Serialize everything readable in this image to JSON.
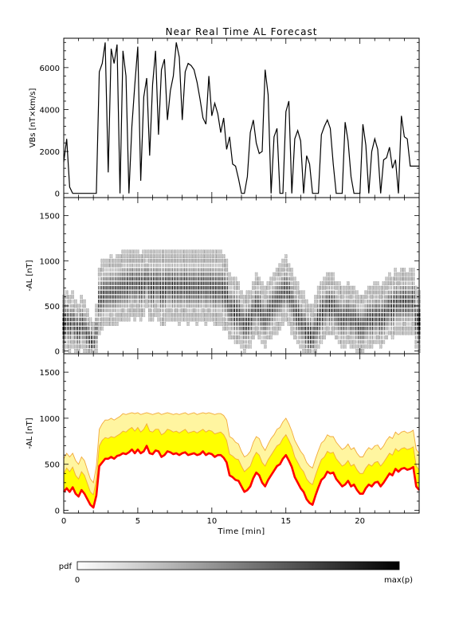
{
  "chart_data": {
    "title": "Near Real Time AL Forecast",
    "x": [
      0,
      0.2,
      0.4,
      0.6,
      0.8,
      1.0,
      1.2,
      1.4,
      1.6,
      1.8,
      2.0,
      2.2,
      2.4,
      2.6,
      2.8,
      3.0,
      3.2,
      3.4,
      3.6,
      3.8,
      4.0,
      4.2,
      4.4,
      4.6,
      4.8,
      5.0,
      5.2,
      5.4,
      5.6,
      5.8,
      6.0,
      6.2,
      6.4,
      6.6,
      6.8,
      7.0,
      7.2,
      7.4,
      7.6,
      7.8,
      8.0,
      8.2,
      8.4,
      8.6,
      8.8,
      9.0,
      9.2,
      9.4,
      9.6,
      9.8,
      10.0,
      10.2,
      10.4,
      10.6,
      10.8,
      11.0,
      11.2,
      11.4,
      11.6,
      11.8,
      12.0,
      12.2,
      12.4,
      12.6,
      12.8,
      13.0,
      13.2,
      13.4,
      13.6,
      13.8,
      14.0,
      14.2,
      14.4,
      14.6,
      14.8,
      15.0,
      15.2,
      15.4,
      15.6,
      15.8,
      16.0,
      16.2,
      16.4,
      16.6,
      16.8,
      17.0,
      17.2,
      17.4,
      17.6,
      17.8,
      18.0,
      18.2,
      18.4,
      18.6,
      18.8,
      19.0,
      19.2,
      19.4,
      19.6,
      19.8,
      20.0,
      20.2,
      20.4,
      20.6,
      20.8,
      21.0,
      21.2,
      21.4,
      21.6,
      21.8,
      22.0,
      22.2,
      22.4,
      22.6,
      22.8,
      23.0,
      23.2,
      23.4,
      23.6,
      23.8,
      24.0
    ],
    "xlim": [
      0,
      24
    ],
    "xticks": [
      "0",
      "5",
      "10",
      "15",
      "20"
    ],
    "xlabel": "Time [min]",
    "panels": [
      {
        "type": "line",
        "ylabel": "VBs [nT×km/s]",
        "ylim": [
          -200,
          7400
        ],
        "yticks": [
          "0",
          "2000",
          "4000",
          "6000"
        ],
        "series": [
          {
            "values": [
              1500,
              2600,
              300,
              0,
              0,
              0,
              0,
              0,
              0,
              0,
              0,
              0,
              5800,
              6200,
              7200,
              1000,
              6900,
              6200,
              7100,
              0,
              6800,
              5600,
              0,
              3200,
              5200,
              7000,
              600,
              4600,
              5500,
              1800,
              5200,
              6800,
              2800,
              5900,
              6400,
              3500,
              4900,
              5600,
              7200,
              6500,
              3500,
              5800,
              6200,
              6100,
              5900,
              5300,
              4500,
              3600,
              3300,
              5600,
              3700,
              4300,
              3800,
              2900,
              3600,
              2100,
              2700,
              1400,
              1300,
              700,
              0,
              0,
              800,
              2900,
              3500,
              2400,
              1900,
              2000,
              5900,
              4700,
              0,
              2700,
              3100,
              0,
              0,
              3900,
              4400,
              0,
              2600,
              3000,
              2500,
              0,
              1800,
              1400,
              0,
              0,
              0,
              2800,
              3200,
              3500,
              3100,
              1400,
              0,
              0,
              0,
              3400,
              2500,
              800,
              0,
              0,
              0,
              3300,
              2300,
              0,
              2000,
              2600,
              2100,
              0,
              1600,
              1700,
              2200,
              1200,
              1600,
              0,
              3700,
              2700,
              2600,
              1300,
              1300,
              1300,
              1300
            ]
          }
        ]
      },
      {
        "type": "heatmap",
        "ylabel": "-AL [nT]",
        "ylim": [
          -30,
          1700
        ],
        "yticks": [
          "0",
          "500",
          "1000",
          "1500"
        ],
        "bin_step": 50,
        "colorbar": {
          "label": "pdf",
          "min_label": "0",
          "max_label": "max(p)"
        }
      },
      {
        "type": "area",
        "ylabel": "-AL [nT]",
        "ylim": [
          -30,
          1700
        ],
        "yticks": [
          "0",
          "500",
          "1000",
          "1500"
        ],
        "series": [
          {
            "name": "",
            "color": "#ff0000",
            "values": [
              200,
              240,
              200,
              250,
              180,
              150,
              220,
              180,
              120,
              60,
              30,
              160,
              480,
              520,
              560,
              560,
              580,
              560,
              590,
              600,
              620,
              610,
              630,
              660,
              620,
              660,
              620,
              640,
              700,
              620,
              610,
              650,
              640,
              580,
              600,
              640,
              630,
              610,
              620,
              600,
              620,
              630,
              600,
              610,
              620,
              600,
              610,
              640,
              600,
              620,
              610,
              580,
              600,
              600,
              570,
              520,
              380,
              360,
              330,
              320,
              260,
              200,
              220,
              260,
              350,
              410,
              380,
              300,
              260,
              330,
              380,
              430,
              480,
              500,
              560,
              600,
              540,
              470,
              360,
              300,
              240,
              200,
              120,
              80,
              60,
              160,
              250,
              330,
              360,
              420,
              400,
              410,
              340,
              300,
              260,
              280,
              320,
              260,
              280,
              220,
              180,
              180,
              240,
              280,
              260,
              300,
              310,
              260,
              300,
              350,
              400,
              380,
              450,
              420,
              450,
              460,
              440,
              450,
              470,
              260,
              220
            ]
          },
          {
            "name": "",
            "color": "#ffff00",
            "values": [
              400,
              460,
              420,
              470,
              380,
              340,
              420,
              380,
              290,
              200,
              170,
              330,
              700,
              760,
              790,
              780,
              800,
              790,
              810,
              830,
              860,
              850,
              880,
              900,
              860,
              900,
              850,
              880,
              940,
              860,
              850,
              880,
              880,
              820,
              840,
              880,
              870,
              850,
              860,
              840,
              860,
              880,
              840,
              850,
              860,
              840,
              860,
              880,
              850,
              870,
              860,
              830,
              840,
              850,
              820,
              760,
              610,
              590,
              560,
              550,
              480,
              420,
              450,
              480,
              570,
              630,
              600,
              520,
              480,
              550,
              600,
              650,
              700,
              720,
              780,
              820,
              760,
              690,
              580,
              520,
              460,
              420,
              340,
              300,
              280,
              380,
              470,
              550,
              580,
              640,
              620,
              630,
              560,
              520,
              480,
              500,
              540,
              480,
              500,
              440,
              400,
              400,
              460,
              500,
              480,
              520,
              530,
              480,
              520,
              570,
              620,
              600,
              670,
              640,
              670,
              680,
              660,
              670,
              690,
              480,
              440
            ]
          },
          {
            "name": "",
            "color": "#fff5a0",
            "values": [
              560,
              620,
              580,
              620,
              540,
              500,
              580,
              540,
              440,
              340,
              300,
              480,
              880,
              940,
              980,
              980,
              1000,
              980,
              1000,
              1020,
              1050,
              1040,
              1050,
              1060,
              1050,
              1060,
              1040,
              1050,
              1060,
              1050,
              1040,
              1050,
              1060,
              1040,
              1050,
              1060,
              1050,
              1040,
              1050,
              1040,
              1050,
              1060,
              1040,
              1050,
              1060,
              1040,
              1050,
              1060,
              1050,
              1060,
              1050,
              1040,
              1050,
              1050,
              1030,
              980,
              800,
              780,
              740,
              720,
              640,
              580,
              600,
              640,
              740,
              800,
              780,
              700,
              650,
              720,
              780,
              820,
              880,
              900,
              960,
              1000,
              940,
              860,
              760,
              700,
              640,
              600,
              520,
              480,
              460,
              560,
              650,
              730,
              760,
              820,
              800,
              800,
              740,
              700,
              660,
              680,
              720,
              660,
              680,
              620,
              580,
              580,
              640,
              680,
              660,
              700,
              710,
              660,
              700,
              760,
              800,
              780,
              850,
              820,
              850,
              860,
              840,
              850,
              870,
              660,
              620
            ]
          }
        ]
      }
    ]
  }
}
